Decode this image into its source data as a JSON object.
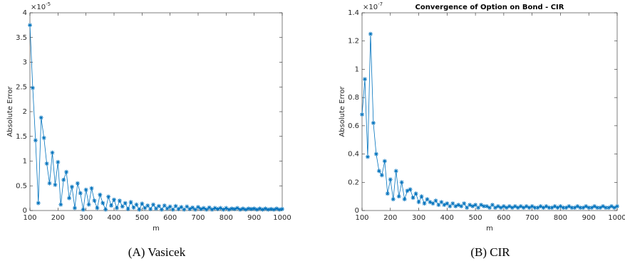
{
  "chart_data": [
    {
      "type": "line",
      "caption": "(A) Vasicek",
      "x_label": "m",
      "y_label": "Absolute Error",
      "y_multiplier": "×10",
      "y_power": "-5",
      "xlim": [
        100,
        1000
      ],
      "xticks": [
        100,
        200,
        300,
        400,
        500,
        600,
        700,
        800,
        900,
        1000
      ],
      "ylim": [
        0,
        4
      ],
      "yticks": [
        0,
        0.5,
        1,
        1.5,
        2,
        2.5,
        3,
        3.5,
        4
      ],
      "x": [
        100,
        110,
        120,
        130,
        140,
        150,
        160,
        170,
        180,
        190,
        200,
        210,
        220,
        230,
        240,
        250,
        260,
        270,
        280,
        290,
        300,
        310,
        320,
        330,
        340,
        350,
        360,
        370,
        380,
        390,
        400,
        410,
        420,
        430,
        440,
        450,
        460,
        470,
        480,
        490,
        500,
        510,
        520,
        530,
        540,
        550,
        560,
        570,
        580,
        590,
        600,
        610,
        620,
        630,
        640,
        650,
        660,
        670,
        680,
        690,
        700,
        710,
        720,
        730,
        740,
        750,
        760,
        770,
        780,
        790,
        800,
        810,
        820,
        830,
        840,
        850,
        860,
        870,
        880,
        890,
        900,
        910,
        920,
        930,
        940,
        950,
        960,
        970,
        980,
        990,
        1000
      ],
      "series": [
        {
          "name": "Vasicek",
          "color": "#0072bd",
          "values": [
            3.75,
            2.48,
            1.42,
            0.15,
            1.88,
            1.47,
            0.95,
            0.55,
            1.17,
            0.52,
            0.98,
            0.12,
            0.62,
            0.78,
            0.25,
            0.48,
            0.05,
            0.55,
            0.35,
            0.02,
            0.42,
            0.12,
            0.45,
            0.2,
            0.05,
            0.32,
            0.15,
            0.02,
            0.28,
            0.1,
            0.22,
            0.05,
            0.2,
            0.08,
            0.15,
            0.03,
            0.17,
            0.06,
            0.12,
            0.02,
            0.14,
            0.05,
            0.1,
            0.03,
            0.12,
            0.04,
            0.09,
            0.02,
            0.1,
            0.04,
            0.08,
            0.02,
            0.09,
            0.03,
            0.07,
            0.02,
            0.08,
            0.03,
            0.06,
            0.02,
            0.07,
            0.03,
            0.05,
            0.02,
            0.06,
            0.02,
            0.05,
            0.03,
            0.05,
            0.02,
            0.05,
            0.02,
            0.04,
            0.03,
            0.05,
            0.02,
            0.04,
            0.02,
            0.04,
            0.03,
            0.04,
            0.02,
            0.04,
            0.02,
            0.04,
            0.02,
            0.03,
            0.02,
            0.04,
            0.02,
            0.03
          ]
        }
      ]
    },
    {
      "type": "line",
      "title": "Convergence of Option on Bond - CIR",
      "caption": "(B) CIR",
      "x_label": "m",
      "y_label": "Absolute Error",
      "y_multiplier": "×10",
      "y_power": "-7",
      "xlim": [
        100,
        1000
      ],
      "xticks": [
        100,
        200,
        300,
        400,
        500,
        600,
        700,
        800,
        900,
        1000
      ],
      "ylim": [
        0,
        1.4
      ],
      "yticks": [
        0,
        0.2,
        0.4,
        0.6,
        0.8,
        1,
        1.2,
        1.4
      ],
      "x": [
        100,
        110,
        120,
        130,
        140,
        150,
        160,
        170,
        180,
        190,
        200,
        210,
        220,
        230,
        240,
        250,
        260,
        270,
        280,
        290,
        300,
        310,
        320,
        330,
        340,
        350,
        360,
        370,
        380,
        390,
        400,
        410,
        420,
        430,
        440,
        450,
        460,
        470,
        480,
        490,
        500,
        510,
        520,
        530,
        540,
        550,
        560,
        570,
        580,
        590,
        600,
        610,
        620,
        630,
        640,
        650,
        660,
        670,
        680,
        690,
        700,
        710,
        720,
        730,
        740,
        750,
        760,
        770,
        780,
        790,
        800,
        810,
        820,
        830,
        840,
        850,
        860,
        870,
        880,
        890,
        900,
        910,
        920,
        930,
        940,
        950,
        960,
        970,
        980,
        990,
        1000
      ],
      "series": [
        {
          "name": "CIR",
          "color": "#0072bd",
          "values": [
            0.68,
            0.93,
            0.38,
            1.25,
            0.62,
            0.4,
            0.28,
            0.25,
            0.35,
            0.12,
            0.22,
            0.08,
            0.28,
            0.1,
            0.2,
            0.08,
            0.14,
            0.15,
            0.09,
            0.12,
            0.06,
            0.1,
            0.05,
            0.08,
            0.06,
            0.05,
            0.07,
            0.04,
            0.06,
            0.04,
            0.05,
            0.03,
            0.05,
            0.03,
            0.04,
            0.03,
            0.05,
            0.02,
            0.04,
            0.03,
            0.04,
            0.02,
            0.04,
            0.03,
            0.03,
            0.02,
            0.04,
            0.02,
            0.03,
            0.02,
            0.03,
            0.02,
            0.03,
            0.02,
            0.03,
            0.02,
            0.03,
            0.02,
            0.03,
            0.02,
            0.03,
            0.02,
            0.02,
            0.03,
            0.02,
            0.03,
            0.02,
            0.02,
            0.03,
            0.02,
            0.03,
            0.02,
            0.02,
            0.03,
            0.02,
            0.02,
            0.03,
            0.02,
            0.02,
            0.03,
            0.02,
            0.02,
            0.03,
            0.02,
            0.02,
            0.03,
            0.02,
            0.02,
            0.03,
            0.02,
            0.03
          ]
        }
      ]
    }
  ]
}
